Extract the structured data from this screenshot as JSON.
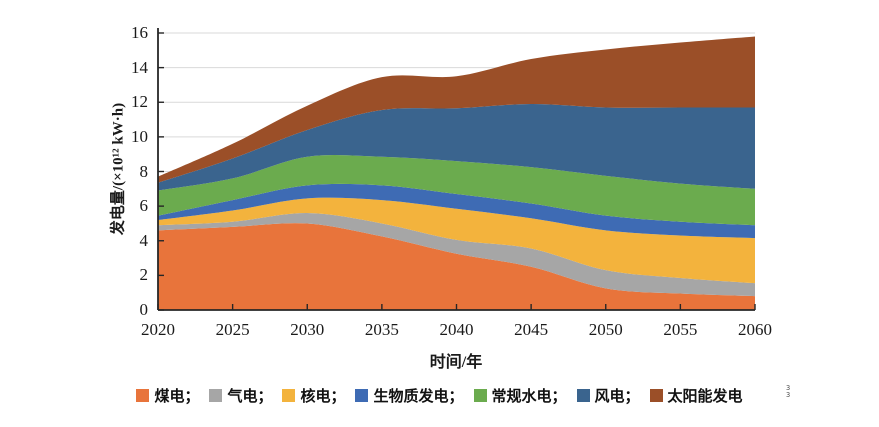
{
  "chart_data": {
    "type": "area",
    "stacked": true,
    "title": "",
    "xlabel": "时间/年",
    "ylabel": "发电量/(×10¹² kW·h)",
    "unit": "×10¹² kW·h",
    "x": [
      2020,
      2025,
      2030,
      2035,
      2040,
      2045,
      2050,
      2055,
      2060
    ],
    "x_ticks": [
      2020,
      2025,
      2030,
      2035,
      2040,
      2045,
      2050,
      2055,
      2060
    ],
    "y_ticks": [
      0,
      2,
      4,
      6,
      8,
      10,
      12,
      14,
      16
    ],
    "xlim": [
      2020,
      2060
    ],
    "ylim": [
      0,
      16
    ],
    "grid": true,
    "legend_position": "bottom",
    "series": [
      {
        "key": "coal",
        "name": "煤电",
        "label": "煤电；",
        "color": "#E8743B",
        "values": [
          4.6,
          4.8,
          5.0,
          4.25,
          3.25,
          2.5,
          1.25,
          0.95,
          0.8
        ]
      },
      {
        "key": "gas",
        "name": "气电",
        "label": "气电；",
        "color": "#A6A6A6",
        "values": [
          0.3,
          0.3,
          0.6,
          0.75,
          0.8,
          1.05,
          1.05,
          0.9,
          0.75
        ]
      },
      {
        "key": "nuclear",
        "name": "核电",
        "label": "核电；",
        "color": "#F3B33D",
        "values": [
          0.3,
          0.65,
          0.85,
          1.35,
          1.8,
          1.75,
          2.3,
          2.45,
          2.6
        ]
      },
      {
        "key": "biomass",
        "name": "生物质发电",
        "label": "生物质发电；",
        "color": "#3E6BB4",
        "values": [
          0.25,
          0.6,
          0.75,
          0.85,
          0.85,
          0.85,
          0.85,
          0.8,
          0.75
        ]
      },
      {
        "key": "hydro",
        "name": "常规水电",
        "label": "常规水电；",
        "color": "#6BAB4E",
        "values": [
          1.45,
          1.25,
          1.65,
          1.65,
          1.9,
          2.1,
          2.3,
          2.2,
          2.1
        ]
      },
      {
        "key": "wind",
        "name": "风电",
        "label": "风电；",
        "color": "#3A648E",
        "values": [
          0.45,
          1.15,
          1.55,
          2.7,
          3.05,
          3.65,
          3.95,
          4.4,
          4.7
        ]
      },
      {
        "key": "solar",
        "name": "太阳能发电",
        "label": "太阳能发电",
        "color": "#9B4F28",
        "values": [
          0.35,
          0.85,
          1.4,
          1.9,
          1.85,
          2.6,
          3.35,
          3.75,
          4.1
        ]
      }
    ],
    "stack_totals": [
      7.7,
      9.6,
      11.8,
      13.45,
      13.5,
      14.5,
      15.05,
      15.45,
      15.8
    ]
  },
  "colors": {
    "gridline": "#D9D9D9",
    "axis": "#262626",
    "text": "#1A1A1A",
    "background": "#FFFFFF"
  },
  "artifact": {
    "line1": "3",
    "line2": "3"
  }
}
